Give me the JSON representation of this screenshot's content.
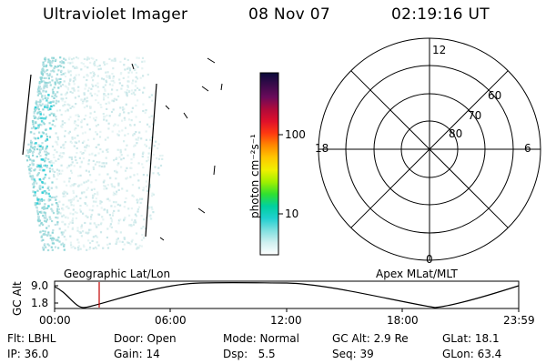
{
  "header": {
    "instrument": "Ultraviolet Imager",
    "date": "08 Nov 07",
    "time": "02:19:16 UT"
  },
  "colorbar": {
    "unit_label": "photon cm⁻²s⁻¹",
    "ticks": [
      "100",
      "10"
    ],
    "colors": [
      "#0a0a3a",
      "#3a0a4a",
      "#6a0a5a",
      "#b00a3a",
      "#e0102a",
      "#ff3a10",
      "#ff8a00",
      "#ffc800",
      "#f0f000",
      "#a0f000",
      "#30e030",
      "#00d0a0",
      "#20d0d0",
      "#80e0e0",
      "#d0f0f0",
      "#ffffff"
    ]
  },
  "polar_plot": {
    "mlt_labels": {
      "top": "12",
      "left": "18",
      "right": "6",
      "bottom": "0"
    },
    "lat_labels": [
      "60",
      "70",
      "80"
    ]
  },
  "timeline": {
    "left_label": "Geographic Lat/Lon",
    "right_label": "Apex MLat/MLT",
    "y_axis_title": "GC Alt",
    "y_ticks": [
      "9.0",
      "1.8"
    ],
    "x_ticks": [
      "00:00",
      "06:00",
      "12:00",
      "18:00",
      "23:59"
    ],
    "marker_color": "#c00000"
  },
  "status": {
    "row1": {
      "filter": "Flt: LBHL",
      "door": "Door: Open",
      "mode": "Mode: Normal",
      "gc_alt": "GC Alt: 2.9 Re",
      "glat": "GLat: 18.1"
    },
    "row2": {
      "ip": "IP: 36.0",
      "gain": "Gain: 14",
      "dsp": "Dsp:   5.5",
      "seq": "Seq: 39",
      "glon": "GLon: 63.4"
    }
  }
}
